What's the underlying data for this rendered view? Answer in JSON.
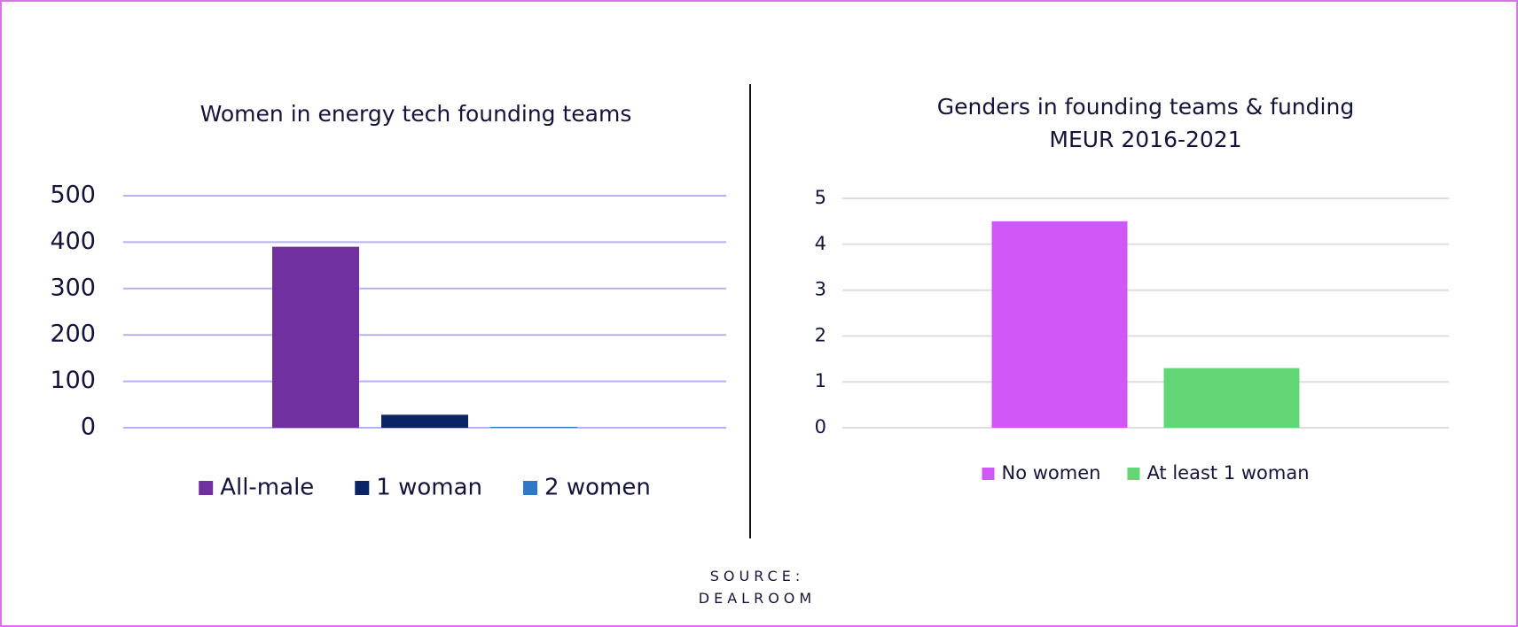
{
  "chart_data": [
    {
      "type": "bar",
      "title": "Women in energy tech founding teams",
      "categories": [
        null
      ],
      "series": [
        {
          "name": "All-male",
          "color": "#7030a0",
          "values": [
            390
          ]
        },
        {
          "name": "1 woman",
          "color": "#0b2463",
          "values": [
            28
          ]
        },
        {
          "name": "2 women",
          "color": "#2f78c8",
          "values": [
            2
          ]
        }
      ],
      "ylim": [
        0,
        500
      ],
      "yticks": [
        0,
        100,
        200,
        300,
        400,
        500
      ],
      "grid": true,
      "legend": "bottom"
    },
    {
      "type": "bar",
      "title": "Genders in founding teams & funding MEUR 2016-2021",
      "categories": [
        null
      ],
      "series": [
        {
          "name": "No women",
          "color": "#d257f7",
          "values": [
            4.5
          ]
        },
        {
          "name": "At least 1 woman",
          "color": "#63d676",
          "values": [
            1.3
          ]
        }
      ],
      "ylim": [
        0,
        5
      ],
      "yticks": [
        0,
        1,
        2,
        3,
        4,
        5
      ],
      "grid": true,
      "legend": "bottom"
    }
  ],
  "source": "SOURCE: DEALROOM"
}
